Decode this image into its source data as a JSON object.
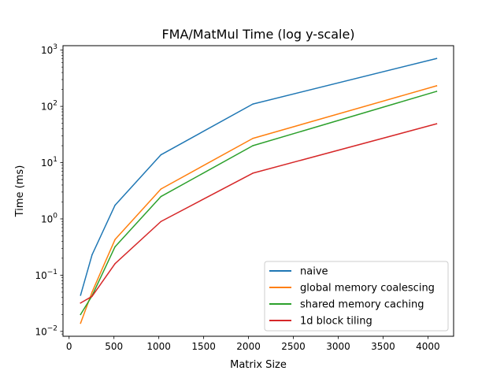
{
  "chart_data": {
    "type": "line",
    "title": "FMA/MatMul Time (log y-scale)",
    "xlabel": "Matrix Size",
    "ylabel": "Time (ms)",
    "yscale": "log",
    "xlim": [
      -68,
      4286
    ],
    "ylim": [
      0.0082,
      1200
    ],
    "x_ticks": [
      0,
      500,
      1000,
      1500,
      2000,
      2500,
      3000,
      3500,
      4000
    ],
    "y_ticks": [
      {
        "value": 0.01,
        "base": "10",
        "exp": "−2"
      },
      {
        "value": 0.1,
        "base": "10",
        "exp": "−1"
      },
      {
        "value": 1,
        "base": "10",
        "exp": "0"
      },
      {
        "value": 10,
        "base": "10",
        "exp": "1"
      },
      {
        "value": 100,
        "base": "10",
        "exp": "2"
      },
      {
        "value": 1000,
        "base": "10",
        "exp": "3"
      }
    ],
    "x": [
      128,
      256,
      512,
      1024,
      2048,
      4096
    ],
    "series": [
      {
        "name": "naive",
        "color": "#1f77b4",
        "values": [
          0.044,
          0.23,
          1.75,
          13.8,
          110,
          710
        ]
      },
      {
        "name": "global memory coalescing",
        "color": "#ff7f0e",
        "values": [
          0.014,
          0.05,
          0.43,
          3.4,
          27,
          232
        ]
      },
      {
        "name": "shared memory caching",
        "color": "#2ca02c",
        "values": [
          0.02,
          0.043,
          0.32,
          2.5,
          20,
          185
        ]
      },
      {
        "name": "1d block tiling",
        "color": "#d62728",
        "values": [
          0.032,
          0.042,
          0.16,
          0.9,
          6.5,
          49
        ]
      }
    ],
    "legend": {
      "placement": "lower-right"
    },
    "grid": false
  }
}
